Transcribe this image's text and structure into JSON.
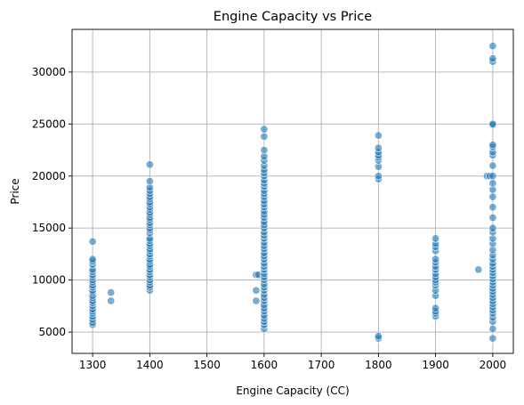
{
  "chart_data": {
    "type": "scatter",
    "title": "Engine Capacity vs Price",
    "xlabel": "Engine Capacity (CC)",
    "ylabel": "Price",
    "xlim": [
      1264,
      2036
    ],
    "ylim": [
      2950,
      34100
    ],
    "xticks": [
      1300,
      1400,
      1500,
      1600,
      1700,
      1800,
      1900,
      2000
    ],
    "yticks": [
      5000,
      10000,
      15000,
      20000,
      25000,
      30000
    ],
    "x_tick_labels": [
      "1300",
      "1400",
      "1500",
      "1600",
      "1700",
      "1800",
      "1900",
      "2000"
    ],
    "y_tick_labels": [
      "5000",
      "10000",
      "15000",
      "20000",
      "25000",
      "30000"
    ],
    "grid": true,
    "marker_color": "#1f77b4",
    "marker_alpha": 0.6,
    "series": [
      {
        "points": [
          [
            1300,
            5700
          ],
          [
            1300,
            5900
          ],
          [
            1300,
            6200
          ],
          [
            1300,
            6500
          ],
          [
            1300,
            6800
          ],
          [
            1300,
            7000
          ],
          [
            1300,
            7200
          ],
          [
            1300,
            7500
          ],
          [
            1300,
            7800
          ],
          [
            1300,
            8000
          ],
          [
            1300,
            8300
          ],
          [
            1300,
            8500
          ],
          [
            1300,
            8800
          ],
          [
            1300,
            9000
          ],
          [
            1300,
            9300
          ],
          [
            1300,
            9500
          ],
          [
            1300,
            9800
          ],
          [
            1300,
            10000
          ],
          [
            1300,
            10300
          ],
          [
            1300,
            10500
          ],
          [
            1300,
            10800
          ],
          [
            1300,
            11000
          ],
          [
            1300,
            11500
          ],
          [
            1300,
            11800
          ],
          [
            1300,
            12000
          ],
          [
            1300,
            13700
          ],
          [
            1332,
            8000
          ],
          [
            1332,
            8800
          ],
          [
            1400,
            9000
          ],
          [
            1400,
            9300
          ],
          [
            1400,
            9500
          ],
          [
            1400,
            9800
          ],
          [
            1400,
            10000
          ],
          [
            1400,
            10300
          ],
          [
            1400,
            10500
          ],
          [
            1400,
            10800
          ],
          [
            1400,
            11000
          ],
          [
            1400,
            11300
          ],
          [
            1400,
            11500
          ],
          [
            1400,
            11800
          ],
          [
            1400,
            12000
          ],
          [
            1400,
            12300
          ],
          [
            1400,
            12500
          ],
          [
            1400,
            12800
          ],
          [
            1400,
            13000
          ],
          [
            1400,
            13300
          ],
          [
            1400,
            13500
          ],
          [
            1400,
            13800
          ],
          [
            1400,
            14000
          ],
          [
            1400,
            14500
          ],
          [
            1400,
            14800
          ],
          [
            1400,
            15000
          ],
          [
            1400,
            15300
          ],
          [
            1400,
            15500
          ],
          [
            1400,
            15800
          ],
          [
            1400,
            16000
          ],
          [
            1400,
            16300
          ],
          [
            1400,
            16500
          ],
          [
            1400,
            16800
          ],
          [
            1400,
            17000
          ],
          [
            1400,
            17300
          ],
          [
            1400,
            17500
          ],
          [
            1400,
            17800
          ],
          [
            1400,
            18000
          ],
          [
            1400,
            18300
          ],
          [
            1400,
            18600
          ],
          [
            1400,
            18900
          ],
          [
            1400,
            19500
          ],
          [
            1400,
            21100
          ],
          [
            1586,
            8000
          ],
          [
            1586,
            9000
          ],
          [
            1586,
            10500
          ],
          [
            1590,
            10500
          ],
          [
            1600,
            5300
          ],
          [
            1600,
            5700
          ],
          [
            1600,
            6000
          ],
          [
            1600,
            6300
          ],
          [
            1600,
            6600
          ],
          [
            1600,
            7000
          ],
          [
            1600,
            7300
          ],
          [
            1600,
            7600
          ],
          [
            1600,
            8000
          ],
          [
            1600,
            8300
          ],
          [
            1600,
            8600
          ],
          [
            1600,
            9000
          ],
          [
            1600,
            9300
          ],
          [
            1600,
            9600
          ],
          [
            1600,
            10000
          ],
          [
            1600,
            10300
          ],
          [
            1600,
            10600
          ],
          [
            1600,
            11000
          ],
          [
            1600,
            11300
          ],
          [
            1600,
            11600
          ],
          [
            1600,
            12000
          ],
          [
            1600,
            12300
          ],
          [
            1600,
            12600
          ],
          [
            1600,
            13000
          ],
          [
            1600,
            13300
          ],
          [
            1600,
            13600
          ],
          [
            1600,
            14000
          ],
          [
            1600,
            14300
          ],
          [
            1600,
            14600
          ],
          [
            1600,
            15000
          ],
          [
            1600,
            15300
          ],
          [
            1600,
            15600
          ],
          [
            1600,
            16000
          ],
          [
            1600,
            16300
          ],
          [
            1600,
            16600
          ],
          [
            1600,
            17000
          ],
          [
            1600,
            17300
          ],
          [
            1600,
            17600
          ],
          [
            1600,
            18000
          ],
          [
            1600,
            18300
          ],
          [
            1600,
            18600
          ],
          [
            1600,
            19000
          ],
          [
            1600,
            19300
          ],
          [
            1600,
            19600
          ],
          [
            1600,
            20000
          ],
          [
            1600,
            20300
          ],
          [
            1600,
            20600
          ],
          [
            1600,
            21000
          ],
          [
            1600,
            21500
          ],
          [
            1600,
            21900
          ],
          [
            1600,
            22500
          ],
          [
            1600,
            23800
          ],
          [
            1600,
            24500
          ],
          [
            1800,
            4400
          ],
          [
            1800,
            4600
          ],
          [
            1800,
            19700
          ],
          [
            1800,
            20000
          ],
          [
            1800,
            20900
          ],
          [
            1800,
            21500
          ],
          [
            1800,
            21800
          ],
          [
            1800,
            22000
          ],
          [
            1800,
            22300
          ],
          [
            1800,
            22700
          ],
          [
            1800,
            23900
          ],
          [
            1900,
            6500
          ],
          [
            1900,
            6800
          ],
          [
            1900,
            7000
          ],
          [
            1900,
            7300
          ],
          [
            1900,
            8500
          ],
          [
            1900,
            9000
          ],
          [
            1900,
            9500
          ],
          [
            1900,
            9800
          ],
          [
            1900,
            10000
          ],
          [
            1900,
            10300
          ],
          [
            1900,
            10600
          ],
          [
            1900,
            11000
          ],
          [
            1900,
            11300
          ],
          [
            1900,
            11700
          ],
          [
            1900,
            12000
          ],
          [
            1900,
            12800
          ],
          [
            1900,
            13200
          ],
          [
            1900,
            13500
          ],
          [
            1900,
            14000
          ],
          [
            1975,
            11000
          ],
          [
            1990,
            20000
          ],
          [
            1995,
            20000
          ],
          [
            2000,
            4400
          ],
          [
            2000,
            5300
          ],
          [
            2000,
            6000
          ],
          [
            2000,
            6400
          ],
          [
            2000,
            6800
          ],
          [
            2000,
            7100
          ],
          [
            2000,
            7400
          ],
          [
            2000,
            7700
          ],
          [
            2000,
            8000
          ],
          [
            2000,
            8300
          ],
          [
            2000,
            8600
          ],
          [
            2000,
            8900
          ],
          [
            2000,
            9200
          ],
          [
            2000,
            9500
          ],
          [
            2000,
            9800
          ],
          [
            2000,
            10100
          ],
          [
            2000,
            10400
          ],
          [
            2000,
            10700
          ],
          [
            2000,
            11000
          ],
          [
            2000,
            11300
          ],
          [
            2000,
            11600
          ],
          [
            2000,
            12000
          ],
          [
            2000,
            12400
          ],
          [
            2000,
            12900
          ],
          [
            2000,
            13500
          ],
          [
            2000,
            14000
          ],
          [
            2000,
            14600
          ],
          [
            2000,
            15000
          ],
          [
            2000,
            16000
          ],
          [
            2000,
            17000
          ],
          [
            2000,
            18000
          ],
          [
            2000,
            18700
          ],
          [
            2000,
            19300
          ],
          [
            2000,
            20000
          ],
          [
            2000,
            21000
          ],
          [
            2000,
            22000
          ],
          [
            2000,
            22300
          ],
          [
            2000,
            22800
          ],
          [
            2000,
            23000
          ],
          [
            2000,
            24900
          ],
          [
            2000,
            25000
          ],
          [
            2000,
            31000
          ],
          [
            2000,
            31300
          ],
          [
            2000,
            32500
          ]
        ]
      }
    ]
  }
}
